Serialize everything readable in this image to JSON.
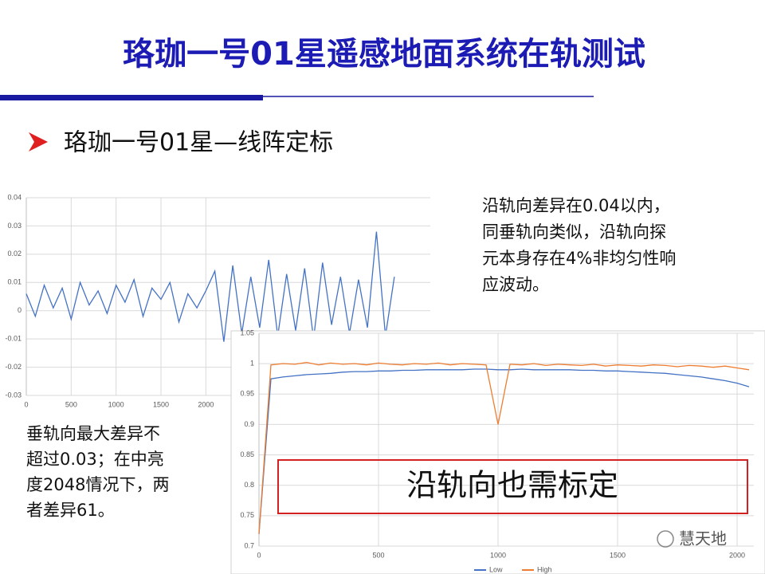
{
  "header": {
    "title": "珞珈一号01星遥感地面系统在轨测试"
  },
  "bullet": "珞珈一号01星—线阵定标",
  "notes": [
    {
      "lines": [
        "沿轨向差异在0.04以内，",
        "同垂轨向类似，沿轨向探",
        "元本身存在4%非均匀性响",
        "应波动。"
      ]
    },
    {
      "lines": [
        "垂轨向最大差异不",
        "超过0.03；在中亮",
        "度2048情况下，两",
        "者差异61。"
      ]
    }
  ],
  "callout": "沿轨向也需标定",
  "watermark": "慧天地",
  "chart_data": [
    {
      "type": "line",
      "color": "#4472c4",
      "grid": true,
      "xlim": [
        0,
        4500
      ],
      "ylim": [
        -0.03,
        0.04
      ],
      "xticks": [
        0,
        500,
        1000,
        1500,
        2000
      ],
      "yticks": [
        -0.03,
        -0.02,
        -0.01,
        0,
        0.01,
        0.02,
        0.03,
        0.04
      ],
      "x": [
        0,
        100,
        200,
        300,
        400,
        500,
        600,
        700,
        800,
        900,
        1000,
        1100,
        1200,
        1300,
        1400,
        1500,
        1600,
        1700,
        1800,
        1900,
        2000,
        2100,
        2200,
        2300,
        2400,
        2500,
        2600,
        2700,
        2800,
        2900,
        3000,
        3100,
        3200,
        3300,
        3400,
        3500,
        3600,
        3700,
        3800,
        3900,
        4000,
        4100
      ],
      "values": [
        0.006,
        -0.002,
        0.009,
        0.001,
        0.008,
        -0.003,
        0.01,
        0.002,
        0.007,
        -0.001,
        0.009,
        0.003,
        0.011,
        -0.002,
        0.008,
        0.004,
        0.01,
        -0.004,
        0.006,
        0.001,
        0.007,
        0.014,
        -0.011,
        0.016,
        -0.008,
        0.012,
        -0.006,
        0.018,
        -0.009,
        0.013,
        -0.007,
        0.015,
        -0.01,
        0.017,
        -0.005,
        0.012,
        -0.008,
        0.011,
        -0.006,
        0.028,
        -0.009,
        0.012
      ]
    },
    {
      "type": "line",
      "grid": true,
      "xlim": [
        0,
        2070
      ],
      "ylim": [
        0.7,
        1.05
      ],
      "xticks": [
        0,
        500,
        1000,
        1500,
        2000
      ],
      "yticks": [
        0.7,
        0.75,
        0.8,
        0.85,
        0.9,
        0.95,
        1,
        1.05
      ],
      "x": [
        0,
        50,
        100,
        150,
        200,
        250,
        300,
        350,
        400,
        450,
        500,
        550,
        600,
        650,
        700,
        750,
        800,
        850,
        900,
        950,
        1000,
        1050,
        1100,
        1150,
        1200,
        1250,
        1300,
        1350,
        1400,
        1450,
        1500,
        1550,
        1600,
        1650,
        1700,
        1750,
        1800,
        1850,
        1900,
        1950,
        2000,
        2050
      ],
      "series": [
        {
          "name": "Low",
          "color": "#4472c4",
          "values": [
            0.72,
            0.975,
            0.978,
            0.98,
            0.982,
            0.983,
            0.984,
            0.986,
            0.987,
            0.987,
            0.988,
            0.988,
            0.989,
            0.989,
            0.99,
            0.99,
            0.99,
            0.99,
            0.991,
            0.991,
            0.99,
            0.99,
            0.991,
            0.99,
            0.99,
            0.99,
            0.99,
            0.989,
            0.989,
            0.988,
            0.988,
            0.987,
            0.986,
            0.985,
            0.984,
            0.982,
            0.98,
            0.978,
            0.975,
            0.972,
            0.968,
            0.962
          ]
        },
        {
          "name": "High",
          "color": "#ed7d31",
          "values": [
            0.72,
            0.998,
            1.0,
            0.999,
            1.002,
            0.998,
            1.001,
            0.999,
            1.0,
            0.998,
            1.001,
            0.999,
            0.998,
            1.0,
            0.999,
            1.001,
            0.998,
            1.0,
            0.999,
            0.998,
            0.9,
            0.999,
            0.998,
            1.0,
            0.997,
            0.999,
            0.998,
            0.997,
            0.999,
            0.996,
            0.998,
            0.997,
            0.996,
            0.998,
            0.997,
            0.995,
            0.997,
            0.996,
            0.994,
            0.996,
            0.993,
            0.99
          ]
        }
      ]
    }
  ]
}
